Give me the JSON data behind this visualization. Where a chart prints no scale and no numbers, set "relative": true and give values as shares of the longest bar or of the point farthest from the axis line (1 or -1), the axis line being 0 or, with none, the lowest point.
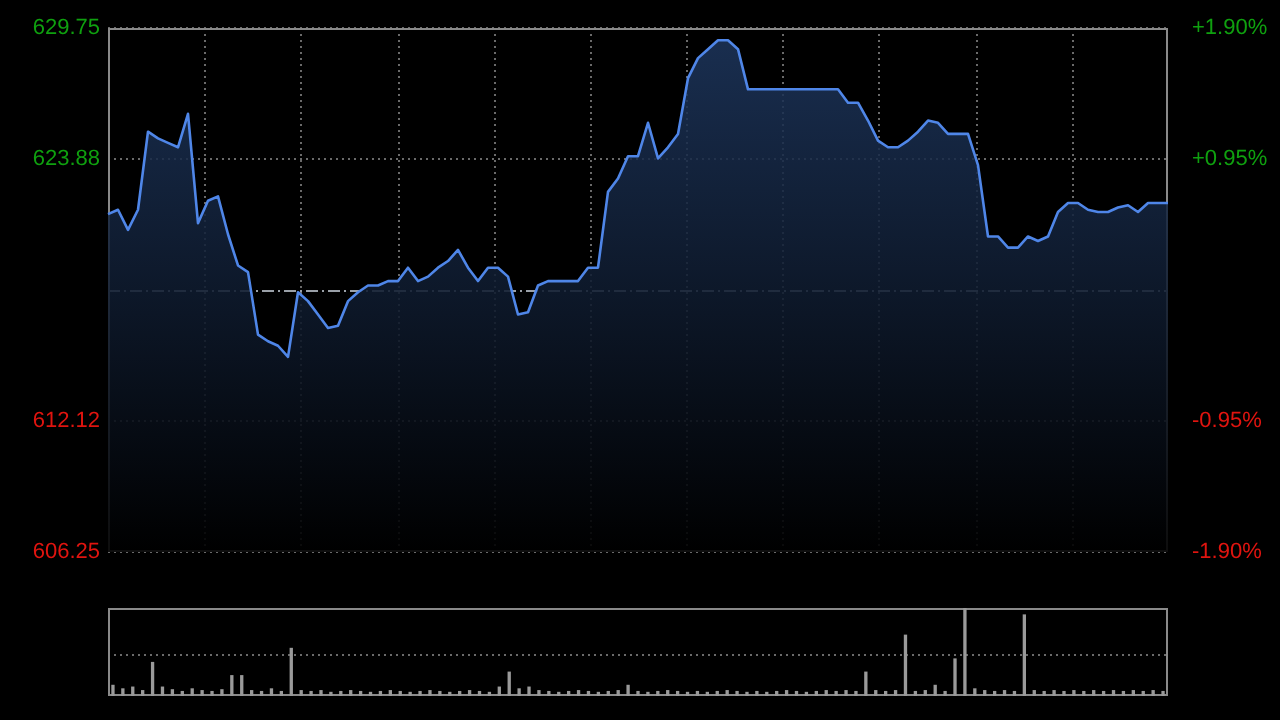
{
  "chart_data": [
    {
      "type": "area",
      "categories": [
        null,
        null,
        null,
        null,
        null,
        null,
        null,
        null,
        null,
        null,
        null,
        null,
        null,
        null,
        null,
        null,
        null,
        null,
        null,
        null,
        null,
        null,
        null,
        null,
        null,
        null,
        null,
        null,
        null,
        null,
        null,
        null,
        null,
        null,
        null,
        null,
        null,
        null,
        null,
        null,
        null,
        null,
        null,
        null,
        null,
        null,
        null,
        null,
        null,
        null,
        null,
        null,
        null,
        null,
        null,
        null,
        null,
        null,
        null,
        null,
        null,
        null,
        null,
        null,
        null,
        null,
        null,
        null,
        null,
        null,
        null,
        null,
        null,
        null,
        null,
        null,
        null,
        null,
        null,
        null,
        null,
        null,
        null,
        null,
        null,
        null,
        null,
        null,
        null,
        null,
        null,
        null,
        null,
        null,
        null,
        null,
        null,
        null,
        null,
        null,
        null,
        null,
        null,
        null,
        null,
        null,
        null
      ],
      "series": [
        {
          "color": "#4f86e8",
          "values": [
            621.4,
            621.6,
            620.7,
            621.6,
            625.1,
            624.8,
            624.6,
            624.4,
            625.9,
            621.0,
            622.0,
            622.2,
            620.5,
            619.1,
            618.8,
            616.0,
            615.7,
            615.5,
            615.0,
            617.9,
            617.5,
            616.9,
            616.3,
            616.4,
            617.5,
            617.9,
            618.2,
            618.2,
            618.4,
            618.4,
            619.0,
            618.4,
            618.6,
            619.0,
            619.3,
            619.8,
            619.0,
            618.4,
            619.0,
            619.0,
            618.6,
            616.9,
            617.0,
            618.2,
            618.4,
            618.4,
            618.4,
            618.4,
            619.0,
            619.0,
            622.4,
            623.0,
            624.0,
            624.0,
            625.5,
            623.9,
            624.4,
            625.0,
            627.5,
            628.4,
            628.8,
            629.2,
            629.2,
            628.8,
            627.0,
            627.0,
            627.0,
            627.0,
            627.0,
            627.0,
            627.0,
            627.0,
            627.0,
            627.0,
            626.4,
            626.4,
            625.6,
            624.7,
            624.4,
            624.4,
            624.7,
            625.1,
            625.6,
            625.5,
            625.0,
            625.0,
            625.0,
            623.6,
            620.4,
            620.4,
            619.9,
            619.9,
            620.4,
            620.2,
            620.4,
            621.5,
            621.9,
            621.9,
            621.6,
            621.5,
            621.5,
            621.7,
            621.8,
            621.5,
            621.9,
            621.9,
            621.9
          ]
        }
      ],
      "ylim": [
        606.25,
        629.75
      ],
      "yticks": [
        606.25,
        612.12,
        623.88,
        629.75
      ],
      "y2lim": [
        -1.9,
        1.9
      ],
      "y2ticks": [
        {
          "value": -1.9,
          "label": "-1.90%"
        },
        {
          "value": -0.95,
          "label": "-0.95%"
        },
        {
          "value": 0.95,
          "label": "+0.95%"
        },
        {
          "value": 1.9,
          "label": "+1.90%"
        }
      ],
      "ref_lines": [
        {
          "axis": "y",
          "value": 618.0,
          "color": "#9aa0a8",
          "line_style": "dashed"
        }
      ],
      "grid": true,
      "legend": false,
      "marker": "none",
      "line_style": "solid",
      "tick_labels": "y"
    },
    {
      "type": "bar",
      "relative": true,
      "categories": [
        null,
        null,
        null,
        null,
        null,
        null,
        null,
        null,
        null,
        null,
        null,
        null,
        null,
        null,
        null,
        null,
        null,
        null,
        null,
        null,
        null,
        null,
        null,
        null,
        null,
        null,
        null,
        null,
        null,
        null,
        null,
        null,
        null,
        null,
        null,
        null,
        null,
        null,
        null,
        null,
        null,
        null,
        null,
        null,
        null,
        null,
        null,
        null,
        null,
        null,
        null,
        null,
        null,
        null,
        null,
        null,
        null,
        null,
        null,
        null,
        null,
        null,
        null,
        null,
        null,
        null,
        null,
        null,
        null,
        null,
        null,
        null,
        null,
        null,
        null,
        null,
        null,
        null,
        null,
        null,
        null,
        null,
        null,
        null,
        null,
        null,
        null,
        null,
        null,
        null,
        null,
        null,
        null,
        null,
        null,
        null,
        null,
        null,
        null,
        null,
        null,
        null,
        null,
        null,
        null,
        null,
        null
      ],
      "values": [
        0.12,
        0.08,
        0.1,
        0.06,
        0.38,
        0.1,
        0.07,
        0.05,
        0.08,
        0.06,
        0.05,
        0.07,
        0.23,
        0.23,
        0.06,
        0.05,
        0.08,
        0.05,
        0.54,
        0.06,
        0.05,
        0.06,
        0.04,
        0.05,
        0.06,
        0.05,
        0.04,
        0.05,
        0.06,
        0.05,
        0.04,
        0.05,
        0.06,
        0.05,
        0.04,
        0.05,
        0.06,
        0.05,
        0.04,
        0.1,
        0.27,
        0.08,
        0.1,
        0.06,
        0.05,
        0.04,
        0.05,
        0.06,
        0.05,
        0.04,
        0.05,
        0.06,
        0.12,
        0.05,
        0.04,
        0.05,
        0.06,
        0.05,
        0.04,
        0.05,
        0.04,
        0.05,
        0.06,
        0.05,
        0.04,
        0.05,
        0.04,
        0.05,
        0.06,
        0.05,
        0.04,
        0.05,
        0.06,
        0.05,
        0.06,
        0.05,
        0.27,
        0.06,
        0.05,
        0.06,
        0.69,
        0.05,
        0.06,
        0.12,
        0.05,
        0.42,
        1,
        0.08,
        0.06,
        0.05,
        0.06,
        0.05,
        0.92,
        0.06,
        0.05,
        0.06,
        0.05,
        0.06,
        0.05,
        0.06,
        0.05,
        0.06,
        0.05,
        0.06,
        0.05,
        0.06,
        0.05
      ],
      "color": "#9a9a9a",
      "ref_lines": [
        {
          "axis": "y",
          "value": 0.48,
          "color": "#6a6a6a",
          "line_style": "dotted"
        }
      ],
      "legend": false,
      "tick_labels": false
    }
  ]
}
